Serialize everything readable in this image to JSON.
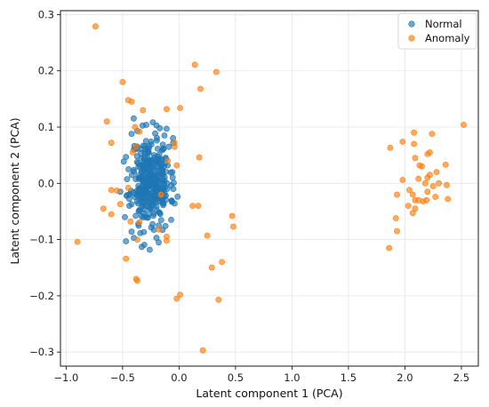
{
  "chart_data": {
    "type": "scatter",
    "xlabel": "Latent component 1 (PCA)",
    "ylabel": "Latent component 2 (PCA)",
    "xlim": [
      -1.05,
      2.65
    ],
    "ylim": [
      -0.325,
      0.307
    ],
    "x_ticks": [
      -1.0,
      -0.5,
      0.0,
      0.5,
      1.0,
      1.5,
      2.0,
      2.5
    ],
    "x_tick_labels": [
      "−1.0",
      "−0.5",
      "0.0",
      "0.5",
      "1.0",
      "1.5",
      "2.0",
      "2.5"
    ],
    "y_ticks": [
      -0.3,
      -0.2,
      -0.1,
      0.0,
      0.1,
      0.2,
      0.3
    ],
    "y_tick_labels": [
      "−0.3",
      "−0.2",
      "−0.1",
      "0.0",
      "0.1",
      "0.2",
      "0.3"
    ],
    "grid": true,
    "legend_position": "top-right",
    "series": [
      {
        "name": "Normal",
        "color": "#1f77b4",
        "cluster": {
          "center": [
            -0.25,
            0.005
          ],
          "spread": [
            0.085,
            0.038
          ],
          "count": 330,
          "seed": 11
        },
        "points": [
          [
            -0.29,
            0.104
          ],
          [
            -0.2,
            0.103
          ],
          [
            -0.17,
            0.098
          ],
          [
            -0.11,
            0.097
          ],
          [
            -0.37,
            0.093
          ],
          [
            -0.42,
            0.088
          ],
          [
            -0.13,
            0.085
          ],
          [
            -0.4,
            0.06
          ],
          [
            -0.09,
            0.065
          ],
          [
            -0.47,
            0.047
          ],
          [
            -0.06,
            0.02
          ],
          [
            -0.05,
            -0.01
          ],
          [
            -0.46,
            -0.021
          ],
          [
            -0.44,
            -0.04
          ],
          [
            -0.36,
            -0.072
          ],
          [
            -0.07,
            -0.065
          ],
          [
            -0.12,
            -0.076
          ],
          [
            -0.42,
            -0.086
          ],
          [
            -0.4,
            -0.097
          ],
          [
            -0.2,
            -0.097
          ],
          [
            -0.47,
            -0.103
          ],
          [
            -0.33,
            -0.113
          ],
          [
            -0.26,
            -0.118
          ],
          [
            -0.18,
            -0.105
          ],
          [
            -0.52,
            -0.015
          ]
        ]
      },
      {
        "name": "Anomaly",
        "color": "#ff7f0e",
        "points": [
          [
            -0.74,
            0.279
          ],
          [
            0.14,
            0.211
          ],
          [
            0.33,
            0.198
          ],
          [
            -0.5,
            0.18
          ],
          [
            0.19,
            0.168
          ],
          [
            -0.45,
            0.148
          ],
          [
            -0.42,
            0.145
          ],
          [
            -0.32,
            0.13
          ],
          [
            -0.11,
            0.132
          ],
          [
            0.01,
            0.134
          ],
          [
            -0.64,
            0.11
          ],
          [
            -0.39,
            0.1
          ],
          [
            -0.35,
            0.092
          ],
          [
            -0.6,
            0.072
          ],
          [
            -0.04,
            0.072
          ],
          [
            -0.38,
            0.065
          ],
          [
            -0.41,
            0.055
          ],
          [
            -0.04,
            0.065
          ],
          [
            0.18,
            0.046
          ],
          [
            -0.1,
            0.04
          ],
          [
            -0.02,
            0.032
          ],
          [
            -0.6,
            -0.012
          ],
          [
            -0.55,
            -0.013
          ],
          [
            -0.45,
            -0.008
          ],
          [
            -0.16,
            -0.02
          ],
          [
            -0.52,
            -0.037
          ],
          [
            -0.67,
            -0.045
          ],
          [
            -0.6,
            -0.055
          ],
          [
            0.12,
            -0.04
          ],
          [
            0.17,
            -0.04
          ],
          [
            0.47,
            -0.058
          ],
          [
            0.48,
            -0.077
          ],
          [
            -0.43,
            -0.068
          ],
          [
            -0.35,
            -0.069
          ],
          [
            -0.18,
            -0.082
          ],
          [
            -0.11,
            -0.095
          ],
          [
            -0.11,
            -0.102
          ],
          [
            -0.37,
            -0.1
          ],
          [
            0.25,
            -0.093
          ],
          [
            -0.9,
            -0.104
          ],
          [
            -0.47,
            -0.134
          ],
          [
            0.38,
            -0.14
          ],
          [
            0.29,
            -0.15
          ],
          [
            -0.38,
            -0.17
          ],
          [
            -0.37,
            -0.173
          ],
          [
            0.01,
            -0.198
          ],
          [
            -0.02,
            -0.205
          ],
          [
            0.35,
            -0.207
          ],
          [
            0.21,
            -0.297
          ],
          [
            2.52,
            0.104
          ],
          [
            2.08,
            0.09
          ],
          [
            2.24,
            0.088
          ],
          [
            1.98,
            0.074
          ],
          [
            2.08,
            0.07
          ],
          [
            1.87,
            0.063
          ],
          [
            2.22,
            0.055
          ],
          [
            2.2,
            0.052
          ],
          [
            2.09,
            0.045
          ],
          [
            2.13,
            0.032
          ],
          [
            2.36,
            0.033
          ],
          [
            2.15,
            0.03
          ],
          [
            2.28,
            0.02
          ],
          [
            2.22,
            0.015
          ],
          [
            2.2,
            0.01
          ],
          [
            2.12,
            0.008
          ],
          [
            2.18,
            0.0
          ],
          [
            2.25,
            -0.005
          ],
          [
            2.3,
            0.0
          ],
          [
            2.37,
            -0.003
          ],
          [
            1.98,
            0.006
          ],
          [
            2.04,
            -0.012
          ],
          [
            2.07,
            -0.02
          ],
          [
            1.93,
            -0.02
          ],
          [
            2.2,
            -0.015
          ],
          [
            2.27,
            -0.024
          ],
          [
            2.12,
            -0.03
          ],
          [
            2.16,
            -0.032
          ],
          [
            2.38,
            -0.028
          ],
          [
            2.03,
            -0.04
          ],
          [
            2.09,
            -0.045
          ],
          [
            2.19,
            -0.03
          ],
          [
            1.92,
            -0.062
          ],
          [
            2.07,
            -0.053
          ],
          [
            1.93,
            -0.085
          ],
          [
            1.86,
            -0.115
          ],
          [
            2.09,
            -0.03
          ]
        ]
      }
    ]
  }
}
